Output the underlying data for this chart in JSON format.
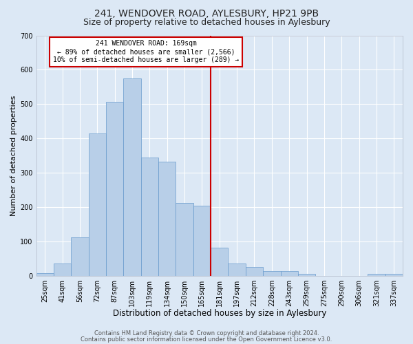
{
  "title": "241, WENDOVER ROAD, AYLESBURY, HP21 9PB",
  "subtitle": "Size of property relative to detached houses in Aylesbury",
  "xlabel": "Distribution of detached houses by size in Aylesbury",
  "ylabel": "Number of detached properties",
  "bar_labels": [
    "25sqm",
    "41sqm",
    "56sqm",
    "72sqm",
    "87sqm",
    "103sqm",
    "119sqm",
    "134sqm",
    "150sqm",
    "165sqm",
    "181sqm",
    "197sqm",
    "212sqm",
    "228sqm",
    "243sqm",
    "259sqm",
    "275sqm",
    "290sqm",
    "306sqm",
    "321sqm",
    "337sqm"
  ],
  "bar_heights": [
    8,
    35,
    112,
    415,
    507,
    575,
    345,
    333,
    212,
    205,
    83,
    37,
    25,
    13,
    13,
    5,
    0,
    0,
    0,
    5,
    5
  ],
  "bar_color": "#b8cfe8",
  "bar_edge_color": "#6699cc",
  "bar_linewidth": 0.5,
  "vline_x": 9.5,
  "vline_color": "#cc0000",
  "vline_linewidth": 1.5,
  "ylim": [
    0,
    700
  ],
  "yticks": [
    0,
    100,
    200,
    300,
    400,
    500,
    600,
    700
  ],
  "background_color": "#dce8f5",
  "grid_color": "#ffffff",
  "annotation_text": "241 WENDOVER ROAD: 169sqm\n← 89% of detached houses are smaller (2,566)\n10% of semi-detached houses are larger (289) →",
  "annotation_box_edge_color": "#cc0000",
  "annotation_box_face_color": "#ffffff",
  "annotation_fontsize": 7.0,
  "footer_line1": "Contains HM Land Registry data © Crown copyright and database right 2024.",
  "footer_line2": "Contains public sector information licensed under the Open Government Licence v3.0.",
  "title_fontsize": 10,
  "subtitle_fontsize": 9,
  "xlabel_fontsize": 8.5,
  "ylabel_fontsize": 8,
  "tick_fontsize": 7,
  "footer_fontsize": 6
}
